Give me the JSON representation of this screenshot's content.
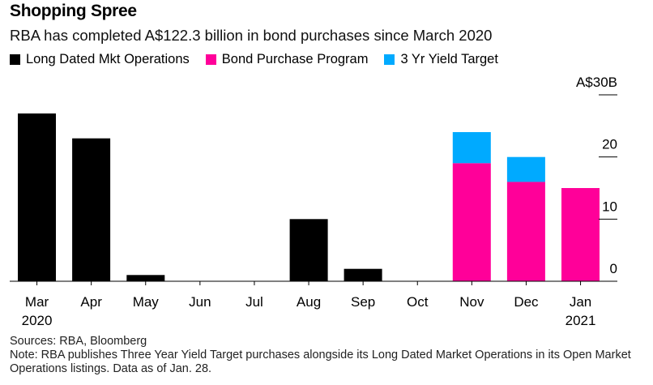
{
  "header": {
    "title": "Shopping Spree",
    "subtitle": "RBA has completed A$122.3 billion in bond purchases since March 2020"
  },
  "legend": [
    {
      "label": "Long Dated Mkt Operations",
      "color": "#000000"
    },
    {
      "label": "Bond Purchase Program",
      "color": "#ff0099"
    },
    {
      "label": "3 Yr Yield Target",
      "color": "#00aaff"
    }
  ],
  "chart_data": {
    "type": "bar",
    "stacked": true,
    "categories": [
      "Mar",
      "Apr",
      "May",
      "Jun",
      "Jul",
      "Aug",
      "Sep",
      "Oct",
      "Nov",
      "Dec",
      "Jan"
    ],
    "category_sublabels": [
      "2020",
      "",
      "",
      "",
      "",
      "",
      "",
      "",
      "",
      "",
      "2021"
    ],
    "series": [
      {
        "name": "Long Dated Mkt Operations",
        "color": "#000000",
        "values": [
          27.0,
          23.0,
          1.0,
          0,
          0,
          10.0,
          2.0,
          0,
          0,
          0,
          0
        ]
      },
      {
        "name": "Bond Purchase Program",
        "color": "#ff0099",
        "values": [
          0,
          0,
          0,
          0,
          0,
          0,
          0,
          0,
          19.0,
          16.0,
          15.0
        ]
      },
      {
        "name": "3 Yr Yield Target",
        "color": "#00aaff",
        "values": [
          0,
          0,
          0,
          0,
          0,
          0,
          0,
          0,
          5.0,
          4.0,
          0
        ]
      }
    ],
    "y_ticks": [
      {
        "value": 0,
        "label": "0"
      },
      {
        "value": 10,
        "label": "10"
      },
      {
        "value": 20,
        "label": "20"
      },
      {
        "value": 30,
        "label": "A$30B"
      }
    ],
    "ylim": [
      0,
      30
    ],
    "y_axis_side": "right",
    "grid": false
  },
  "footer": {
    "sources": "Sources: RBA, Bloomberg",
    "note": "Note: RBA publishes Three Year Yield Target purchases alongside its Long Dated Market Operations in its Open Market Operations listings. Data as of Jan. 28."
  }
}
